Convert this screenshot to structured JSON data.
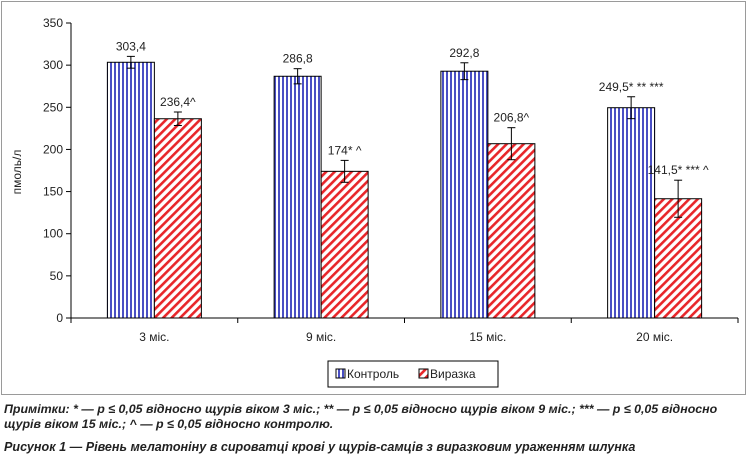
{
  "chart_data": {
    "type": "bar",
    "categories": [
      "3 міс.",
      "9 міс.",
      "15 міс.",
      "20 міс."
    ],
    "series": [
      {
        "name": "Контроль",
        "values": [
          303.4,
          286.8,
          292.8,
          249.5
        ],
        "errors": [
          7,
          9,
          10,
          13
        ],
        "labels": [
          "303,4",
          "286,8",
          "292,8",
          "249,5* ** ***"
        ],
        "color": "#4a4fc4"
      },
      {
        "name": "Виразка",
        "values": [
          236.4,
          174,
          206.8,
          141.5
        ],
        "errors": [
          8,
          13,
          19,
          22
        ],
        "labels": [
          "236,4^",
          "174* ^",
          "206,8^",
          "141,5* *** ^"
        ],
        "color": "#e8262a"
      }
    ],
    "ylabel": "пмоль/л",
    "ylim": [
      0,
      350
    ],
    "yticks": [
      0,
      50,
      100,
      150,
      200,
      250,
      300,
      350
    ],
    "grid": false,
    "legend": "bottom-center"
  },
  "notes": "Примітки: * — p ≤ 0,05 відносно щурів віком 3 міс.; ** — p ≤ 0,05 відносно щурів віком 9 міс.; *** — p ≤ 0,05 відносно щурів віком 15 міс.; ^ — p ≤ 0,05 відносно контролю.",
  "caption": "Рисунок 1 — Рівень мелатоніну в сироватці крові у щурів-самців з виразковим ураженням шлунка"
}
